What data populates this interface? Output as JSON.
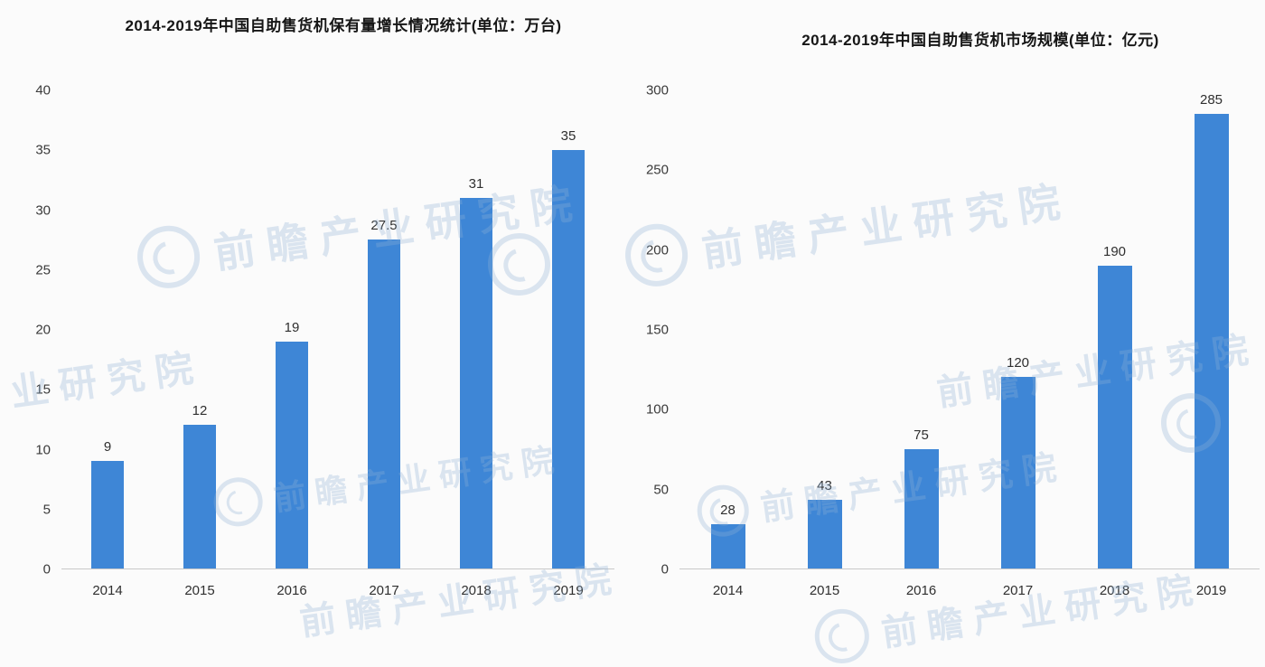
{
  "figure": {
    "watermark_text": "前瞻产业研究院",
    "watermark_color": "#8fb2d6",
    "background_color": "#fbfbfb"
  },
  "chart_data": [
    {
      "type": "bar",
      "title": "2014-2019年中国自助售货机保有量增长情况统计(单位：万台)",
      "categories": [
        "2014",
        "2015",
        "2016",
        "2017",
        "2018",
        "2019"
      ],
      "values": [
        9,
        12,
        19,
        27.5,
        31,
        35
      ],
      "data_labels": [
        "9",
        "12",
        "19",
        "27.5",
        "31",
        "35"
      ],
      "xlabel": "",
      "ylabel": "",
      "ylim": [
        0,
        40
      ],
      "yticks": [
        0,
        5,
        10,
        15,
        20,
        25,
        30,
        35,
        40
      ],
      "grid": false,
      "legend": false,
      "bar_color": "#3e86d6"
    },
    {
      "type": "bar",
      "title": "2014-2019年中国自助售货机市场规模(单位：亿元)",
      "categories": [
        "2014",
        "2015",
        "2016",
        "2017",
        "2018",
        "2019"
      ],
      "values": [
        28,
        43,
        75,
        120,
        190,
        285
      ],
      "data_labels": [
        "28",
        "43",
        "75",
        "120",
        "190",
        "285"
      ],
      "xlabel": "",
      "ylabel": "",
      "ylim": [
        0,
        300
      ],
      "yticks": [
        0,
        50,
        100,
        150,
        200,
        250,
        300
      ],
      "grid": false,
      "legend": false,
      "bar_color": "#3e86d6"
    }
  ]
}
